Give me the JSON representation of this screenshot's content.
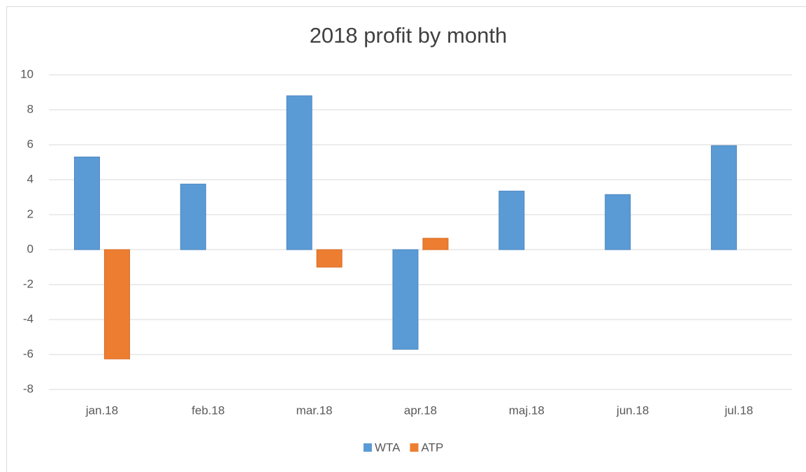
{
  "chart_data": {
    "type": "bar",
    "title": "2018 profit by month",
    "categories": [
      "jan.18",
      "feb.18",
      "mar.18",
      "apr.18",
      "maj.18",
      "jun.18",
      "jul.18"
    ],
    "series": [
      {
        "name": "WTA",
        "color": "#5b9bd5",
        "values": [
          5.3,
          3.75,
          8.8,
          -5.7,
          3.35,
          3.15,
          5.95
        ]
      },
      {
        "name": "ATP",
        "color": "#ed7d31",
        "values": [
          -6.25,
          null,
          -1,
          0.65,
          null,
          null,
          null
        ]
      }
    ],
    "ylim": [
      -8,
      10
    ],
    "yticks": [
      -8,
      -6,
      -4,
      -2,
      0,
      2,
      4,
      6,
      8,
      10
    ],
    "grid": true,
    "legend": "bottom"
  }
}
